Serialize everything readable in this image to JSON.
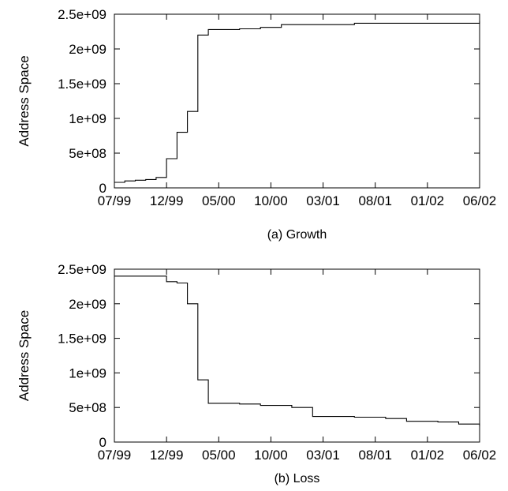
{
  "chart_data": [
    {
      "type": "line",
      "title": "",
      "caption": "(a) Growth",
      "xlabel": "",
      "ylabel": "Address Space",
      "x_tick_labels": [
        "07/99",
        "12/99",
        "05/00",
        "10/00",
        "03/01",
        "08/01",
        "01/02",
        "06/02"
      ],
      "y_tick_labels": [
        "0",
        "5e+08",
        "1e+09",
        "1.5e+09",
        "2e+09",
        "2.5e+09"
      ],
      "y_ticks": [
        0,
        500000000,
        1000000000,
        1500000000,
        2000000000,
        2500000000
      ],
      "xlim": [
        "1999-07",
        "2002-06"
      ],
      "ylim": [
        0,
        2500000000
      ],
      "grid": false,
      "series": [
        {
          "x": [
            "1999-07",
            "1999-08",
            "1999-09",
            "1999-10",
            "1999-11",
            "1999-11",
            "1999-12",
            "1999-12",
            "2000-01",
            "2000-01",
            "2000-02",
            "2000-02",
            "2000-03",
            "2000-03",
            "2000-03",
            "2000-04",
            "2000-07",
            "2000-09",
            "2000-11",
            "2001-06",
            "2002-06"
          ],
          "y": [
            80000000,
            100000000,
            110000000,
            120000000,
            130000000,
            150000000,
            350000000,
            420000000,
            460000000,
            800000000,
            850000000,
            1100000000,
            1400000000,
            1800000000,
            2200000000,
            2280000000,
            2290000000,
            2310000000,
            2350000000,
            2370000000,
            2400000000
          ]
        }
      ]
    },
    {
      "type": "line",
      "title": "",
      "caption": "(b) Loss",
      "xlabel": "",
      "ylabel": "Address Space",
      "x_tick_labels": [
        "07/99",
        "12/99",
        "05/00",
        "10/00",
        "03/01",
        "08/01",
        "01/02",
        "06/02"
      ],
      "y_tick_labels": [
        "0",
        "5e+08",
        "1e+09",
        "1.5e+09",
        "2e+09",
        "2.5e+09"
      ],
      "y_ticks": [
        0,
        500000000,
        1000000000,
        1500000000,
        2000000000,
        2500000000
      ],
      "xlim": [
        "1999-07",
        "2002-06"
      ],
      "ylim": [
        0,
        2500000000
      ],
      "grid": false,
      "series": [
        {
          "x": [
            "1999-07",
            "1999-12",
            "2000-01",
            "2000-02",
            "2000-02",
            "2000-03",
            "2000-03",
            "2000-04",
            "2000-07",
            "2000-09",
            "2000-12",
            "2001-02",
            "2001-06",
            "2001-09",
            "2001-11",
            "2002-02",
            "2002-04",
            "2002-06"
          ],
          "y": [
            2400000000,
            2320000000,
            2300000000,
            2250000000,
            2000000000,
            1600000000,
            900000000,
            560000000,
            550000000,
            530000000,
            500000000,
            370000000,
            360000000,
            340000000,
            300000000,
            290000000,
            260000000,
            230000000
          ]
        }
      ]
    }
  ]
}
